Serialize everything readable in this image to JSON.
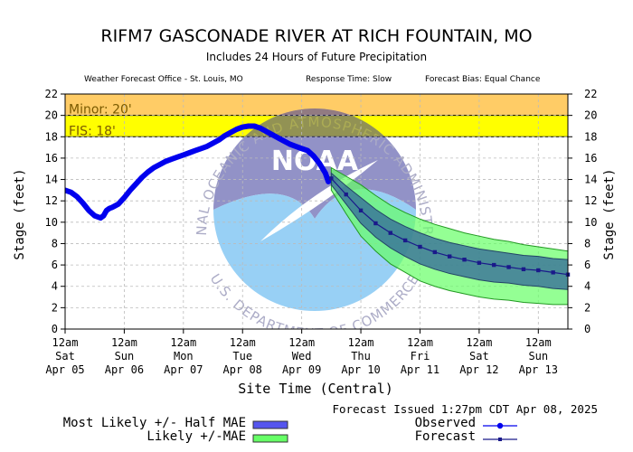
{
  "chart_data": {
    "type": "line",
    "title": "RIFM7 GASCONADE RIVER AT RICH FOUNTAIN, MO",
    "subtitle": "Includes  24 Hours of Future Precipitation",
    "wfo": "Weather Forecast Office - St. Louis, MO",
    "response_time": "Response Time: Slow",
    "forecast_bias": "Forecast Bias:  Equal Chance",
    "xlabel": "Site Time (Central)",
    "ylabel": "Stage (feet)",
    "ylabel_right": "Stage (feet)",
    "ylim": [
      0,
      22
    ],
    "yticks": [
      "0",
      "2",
      "4",
      "6",
      "8",
      "10",
      "12",
      "14",
      "16",
      "18",
      "20",
      "22"
    ],
    "xlim_days": [
      0,
      8.5
    ],
    "xticks": [
      {
        "t": "12am",
        "d": "Sat",
        "m": "Apr 05"
      },
      {
        "t": "12am",
        "d": "Sun",
        "m": "Apr 06"
      },
      {
        "t": "12am",
        "d": "Mon",
        "m": "Apr 07"
      },
      {
        "t": "12am",
        "d": "Tue",
        "m": "Apr 08"
      },
      {
        "t": "12am",
        "d": "Wed",
        "m": "Apr 09"
      },
      {
        "t": "12am",
        "d": "Thu",
        "m": "Apr 10"
      },
      {
        "t": "12am",
        "d": "Fri",
        "m": "Apr 11"
      },
      {
        "t": "12am",
        "d": "Sat",
        "m": "Apr 12"
      },
      {
        "t": "12am",
        "d": "Sun",
        "m": "Apr 13"
      }
    ],
    "thresholds": [
      {
        "label": "Minor: 20'",
        "value": 20,
        "color": "#ffcc66"
      },
      {
        "label": "FIS: 18'",
        "value": 18,
        "color": "#ffff00"
      }
    ],
    "band_top": 22,
    "series": [
      {
        "name": "Observed",
        "color": "#0000ee",
        "x": [
          0.0,
          0.1,
          0.2,
          0.3,
          0.4,
          0.5,
          0.6,
          0.65,
          0.7,
          0.75,
          0.8,
          0.9,
          1.0,
          1.1,
          1.2,
          1.3,
          1.4,
          1.5,
          1.6,
          1.7,
          1.8,
          1.9,
          2.0,
          2.1,
          2.2,
          2.3,
          2.4,
          2.5,
          2.6,
          2.7,
          2.8,
          2.9,
          3.0,
          3.1,
          3.2,
          3.3,
          3.4,
          3.5,
          3.6,
          3.7,
          3.8,
          3.9,
          4.0,
          4.1,
          4.2,
          4.3,
          4.4,
          4.45
        ],
        "y": [
          13.0,
          12.8,
          12.4,
          11.8,
          11.1,
          10.6,
          10.4,
          10.6,
          11.1,
          11.3,
          11.4,
          11.7,
          12.3,
          13.0,
          13.6,
          14.2,
          14.7,
          15.1,
          15.4,
          15.7,
          15.9,
          16.1,
          16.3,
          16.5,
          16.7,
          16.9,
          17.1,
          17.4,
          17.7,
          18.1,
          18.4,
          18.7,
          18.9,
          19.0,
          19.0,
          18.8,
          18.5,
          18.2,
          17.9,
          17.6,
          17.3,
          17.1,
          16.9,
          16.7,
          16.2,
          15.5,
          14.6,
          13.8
        ]
      },
      {
        "name": "Forecast",
        "color": "#1a1a8a",
        "x": [
          4.5,
          4.75,
          5.0,
          5.25,
          5.5,
          5.75,
          6.0,
          6.25,
          6.5,
          6.75,
          7.0,
          7.25,
          7.5,
          7.75,
          8.0,
          8.25,
          8.5
        ],
        "y": [
          14.1,
          12.6,
          11.1,
          9.9,
          9.0,
          8.3,
          7.7,
          7.2,
          6.8,
          6.5,
          6.2,
          6.0,
          5.8,
          5.6,
          5.5,
          5.3,
          5.1
        ]
      }
    ],
    "band_likely_half_mae": {
      "name": "Most Likely +/- Half MAE",
      "color": "#336699",
      "lower": [
        13.5,
        11.7,
        9.9,
        8.6,
        7.6,
        6.8,
        6.1,
        5.6,
        5.2,
        4.9,
        4.6,
        4.4,
        4.3,
        4.1,
        4.0,
        3.8,
        3.7
      ],
      "upper": [
        14.6,
        13.4,
        12.3,
        11.2,
        10.3,
        9.6,
        9.0,
        8.5,
        8.1,
        7.8,
        7.5,
        7.3,
        7.1,
        6.9,
        6.8,
        6.6,
        6.5
      ]
    },
    "band_likely_mae": {
      "name": "Likely +/-MAE",
      "color": "#66ff66",
      "lower": [
        13.0,
        10.8,
        8.7,
        7.3,
        6.1,
        5.3,
        4.5,
        4.0,
        3.6,
        3.3,
        3.0,
        2.8,
        2.7,
        2.5,
        2.4,
        2.3,
        2.3
      ],
      "upper": [
        15.1,
        14.3,
        13.5,
        12.5,
        11.6,
        10.9,
        10.3,
        9.8,
        9.4,
        9.0,
        8.7,
        8.4,
        8.2,
        7.9,
        7.7,
        7.5,
        7.3
      ]
    },
    "grid": true,
    "legend_position": "bottom"
  },
  "watermark": {
    "ring_text_top": "NATIONAL OCEANIC AND ATMOSPHERIC ADMINISTRATION",
    "ring_text_bottom": "U.S. DEPARTMENT OF COMMERCE",
    "logo_text": "NOAA"
  },
  "issued": "Forecast Issued 1:27pm CDT Apr 08, 2025",
  "legend": {
    "half_mae": "Most Likely +/- Half MAE",
    "mae": "Likely +/-MAE",
    "observed": "Observed",
    "forecast": "Forecast"
  }
}
